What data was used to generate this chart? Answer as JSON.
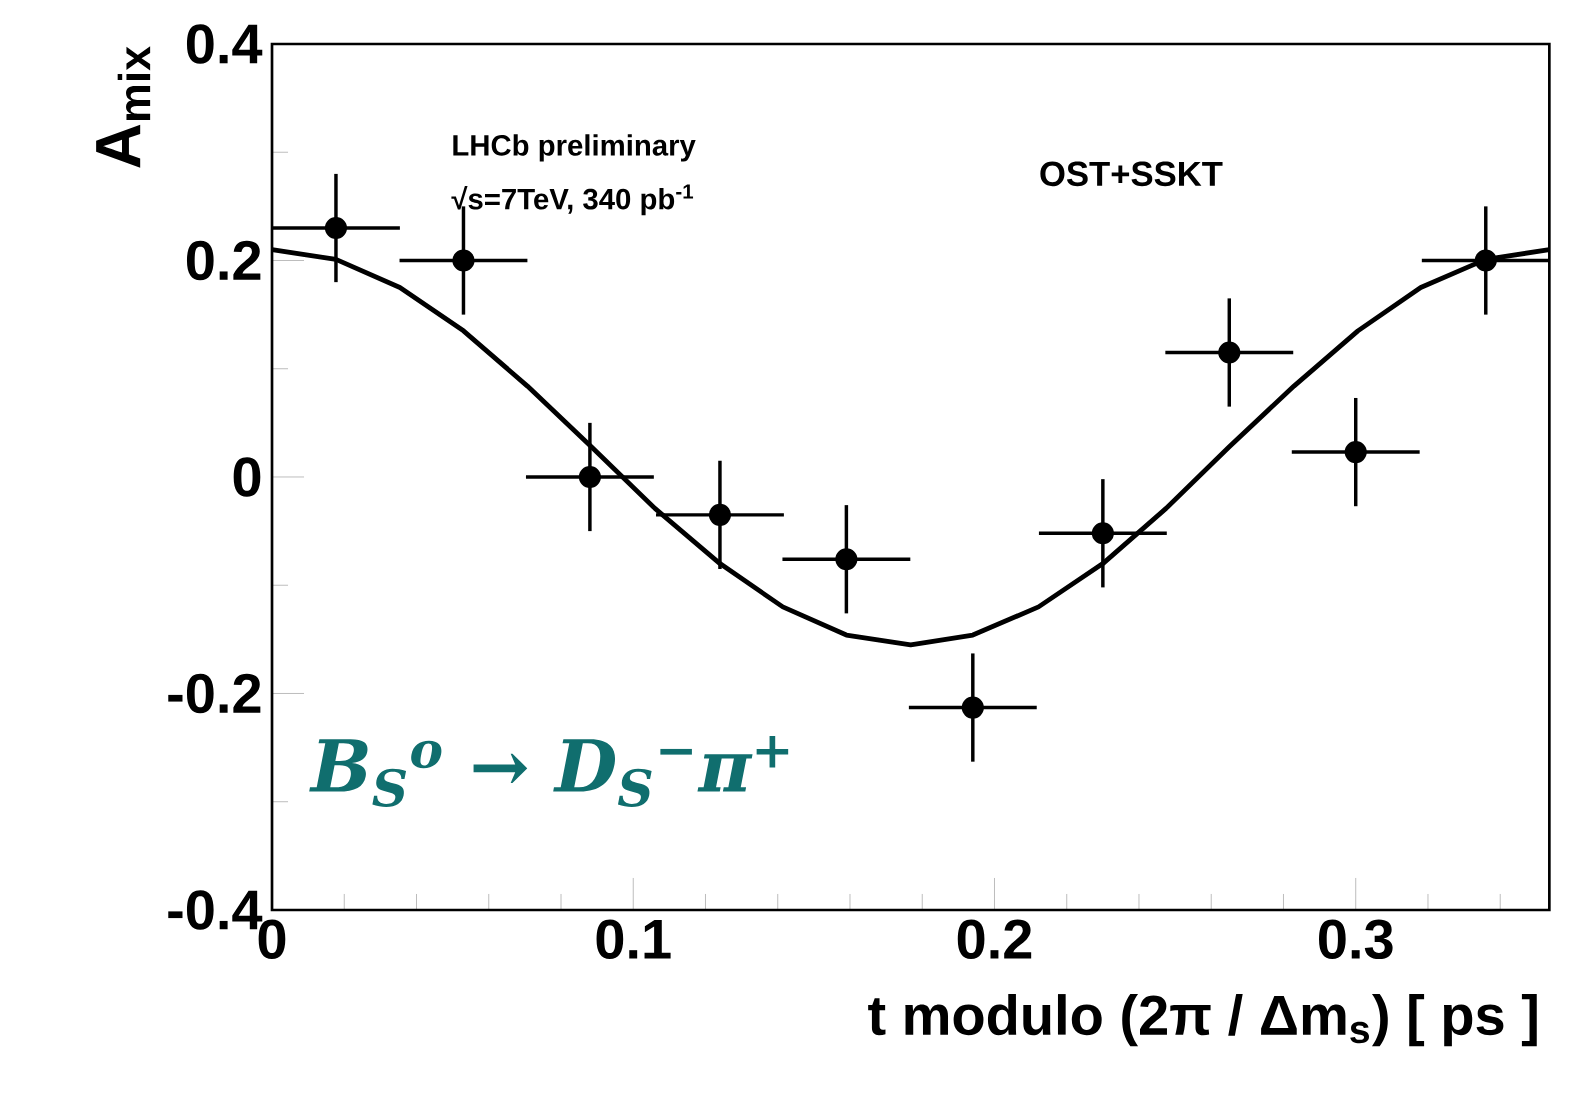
{
  "chart_data": {
    "type": "scatter",
    "ylabel": "A$_{mix}$",
    "xlabel": "t modulo (2π / Δm$_{s}$) [ ps ]",
    "annotations": [
      "LHCb preliminary",
      "√s=7TeV, 340 pb$^{-1}$",
      "OST+SSKT",
      "B$_{S}$$^{o}$ → D$_{S}$$^{−}$π$^{+}$"
    ],
    "xlim": [
      0,
      0.3536
    ],
    "ylim": [
      -0.4,
      0.4
    ],
    "xticks": [
      0,
      {
        "value": 0.02,
        "label": null
      },
      {
        "value": 0.04,
        "label": null
      },
      {
        "value": 0.06,
        "label": null
      },
      {
        "value": 0.08,
        "label": null
      },
      0.1,
      {
        "value": 0.12,
        "label": null
      },
      {
        "value": 0.14,
        "label": null
      },
      {
        "value": 0.16,
        "label": null
      },
      {
        "value": 0.18,
        "label": null
      },
      0.2,
      {
        "value": 0.22,
        "label": null
      },
      {
        "value": 0.24,
        "label": null
      },
      {
        "value": 0.26,
        "label": null
      },
      {
        "value": 0.28,
        "label": null
      },
      0.3,
      {
        "value": 0.32,
        "label": null
      },
      {
        "value": 0.34,
        "label": null
      }
    ],
    "yticks": [
      -0.4,
      {
        "value": -0.3,
        "label": null
      },
      -0.2,
      {
        "value": -0.1,
        "label": null
      },
      0,
      {
        "value": 0.1,
        "label": null
      },
      0.2,
      {
        "value": 0.3,
        "label": null
      },
      0.4
    ],
    "series": [
      {
        "type": "scatter",
        "color": "#000000",
        "marker": "circle",
        "x": [
          0.0177,
          0.053,
          0.088,
          0.124,
          0.159,
          0.194,
          0.23,
          0.265,
          0.3,
          0.336
        ],
        "values": [
          0.23,
          0.2,
          0.0,
          -0.035,
          -0.076,
          -0.213,
          -0.052,
          0.115,
          0.023,
          0.2
        ],
        "errors": [
          0.05,
          0.05,
          0.05,
          0.05,
          0.05,
          0.05,
          0.05,
          0.05,
          0.05,
          0.05
        ],
        "xerrors": [
          0.0177,
          0.0177,
          0.0177,
          0.0177,
          0.0177,
          0.0177,
          0.0177,
          0.0177,
          0.0177,
          0.0177
        ]
      },
      {
        "type": "line",
        "color": "#000000",
        "marker": "none",
        "line_style": "solid",
        "x": [
          0,
          0.0177,
          0.0354,
          0.053,
          0.0707,
          0.0884,
          0.106,
          0.124,
          0.1414,
          0.159,
          0.1768,
          0.194,
          0.2122,
          0.23,
          0.2475,
          0.265,
          0.2829,
          0.3006,
          0.318,
          0.336,
          0.3536
        ],
        "values": [
          0.21,
          0.201,
          0.175,
          0.135,
          0.084,
          0.028,
          -0.029,
          -0.08,
          -0.12,
          -0.146,
          -0.155,
          -0.146,
          -0.12,
          -0.08,
          -0.029,
          0.028,
          0.084,
          0.135,
          0.175,
          0.201,
          0.21
        ]
      }
    ]
  }
}
